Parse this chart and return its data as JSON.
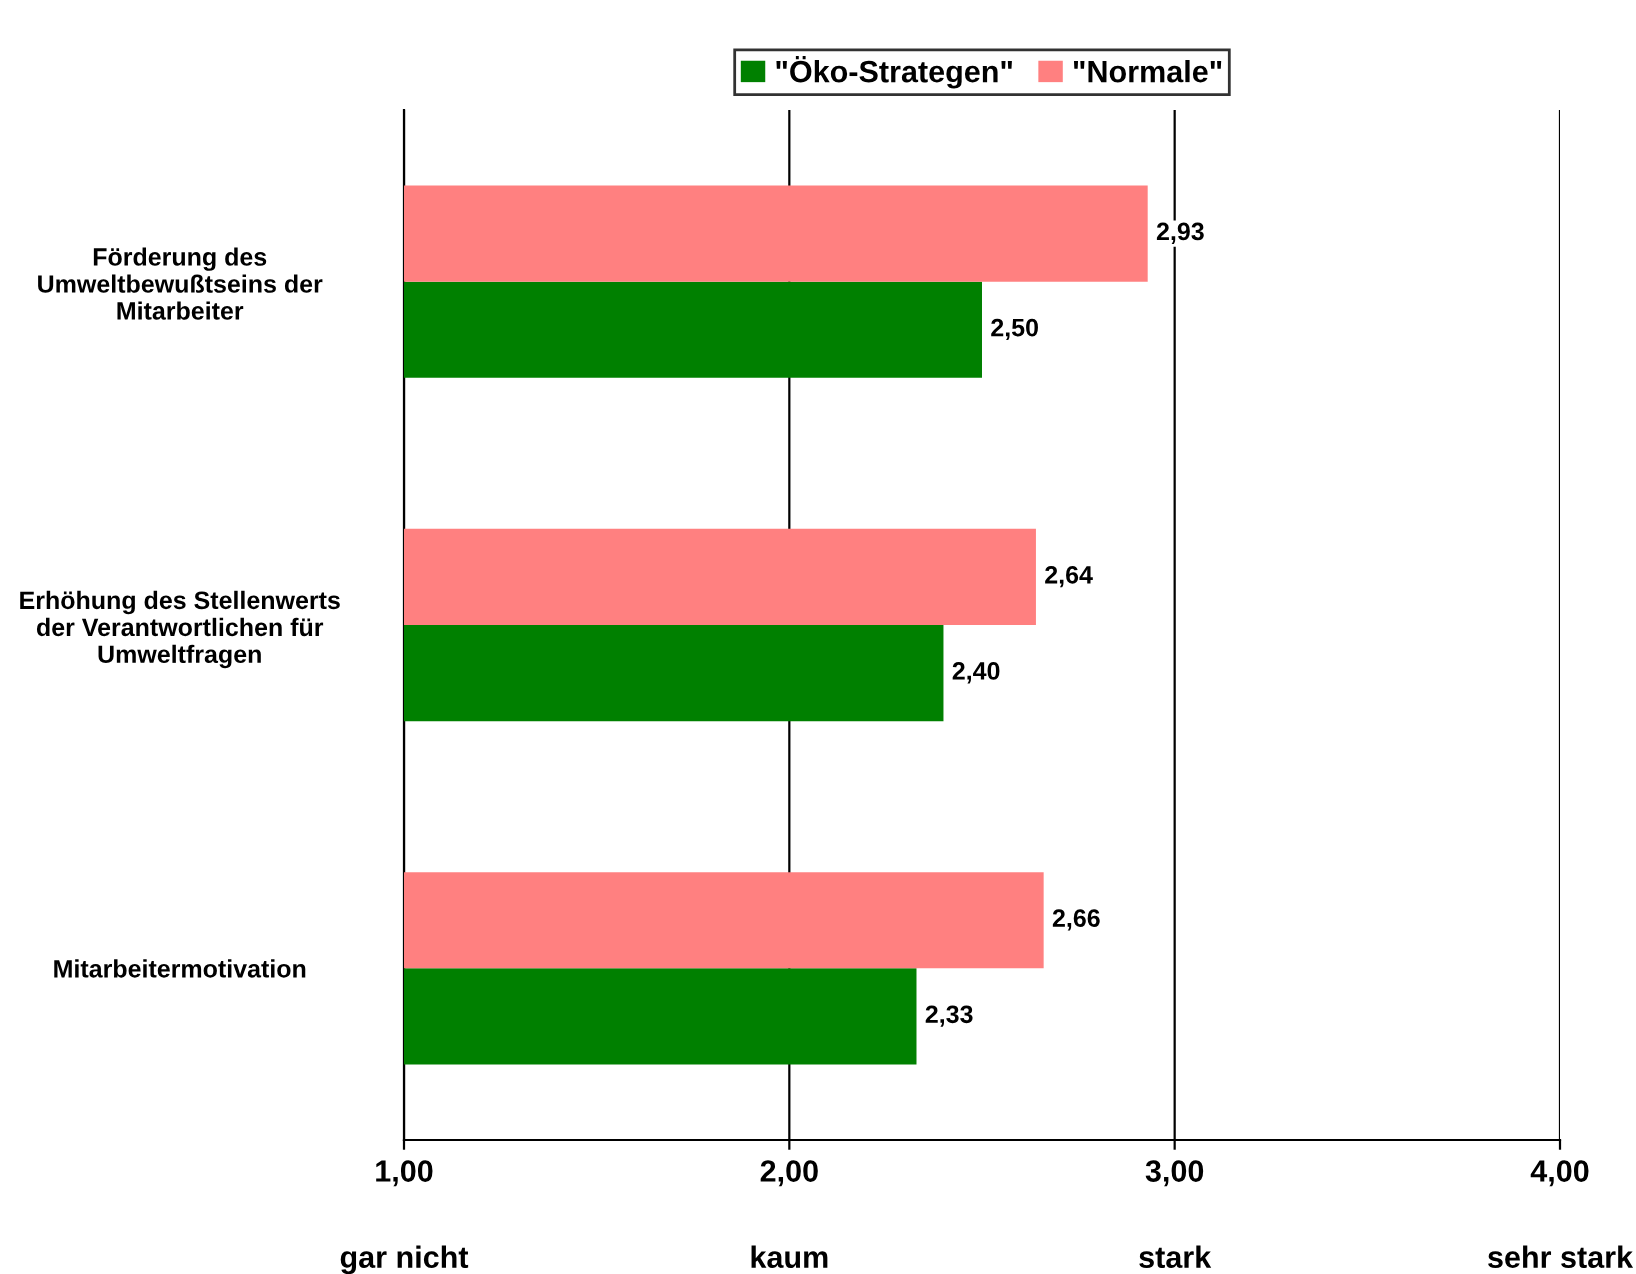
{
  "chart_data": {
    "type": "bar",
    "orientation": "horizontal",
    "categories": [
      "Förderung des\nUmweltbewußtseins der\nMitarbeiter",
      "Erhöhung des Stellenwerts\nder Verantwortlichen für\nUmweltfragen",
      "Mitarbeitermotivation"
    ],
    "series": [
      {
        "name": "\"Öko-Strategen\"",
        "color": "#008000",
        "values": [
          2.5,
          2.4,
          2.33
        ],
        "value_labels": [
          "2,50",
          "2,40",
          "2,33"
        ]
      },
      {
        "name": "\"Normale\"",
        "color": "#ff8080",
        "values": [
          2.93,
          2.64,
          2.66
        ],
        "value_labels": [
          "2,93",
          "2,64",
          "2,66"
        ]
      }
    ],
    "xlim": [
      1,
      4
    ],
    "xticks": [
      {
        "value": 1,
        "label": "1,00"
      },
      {
        "value": 2,
        "label": "2,00"
      },
      {
        "value": 3,
        "label": "3,00"
      },
      {
        "value": 4,
        "label": "4,00"
      }
    ],
    "annotations": [
      "gar nicht",
      "kaum",
      "stark",
      "sehr stark"
    ],
    "grid": "x",
    "legend": "top"
  }
}
